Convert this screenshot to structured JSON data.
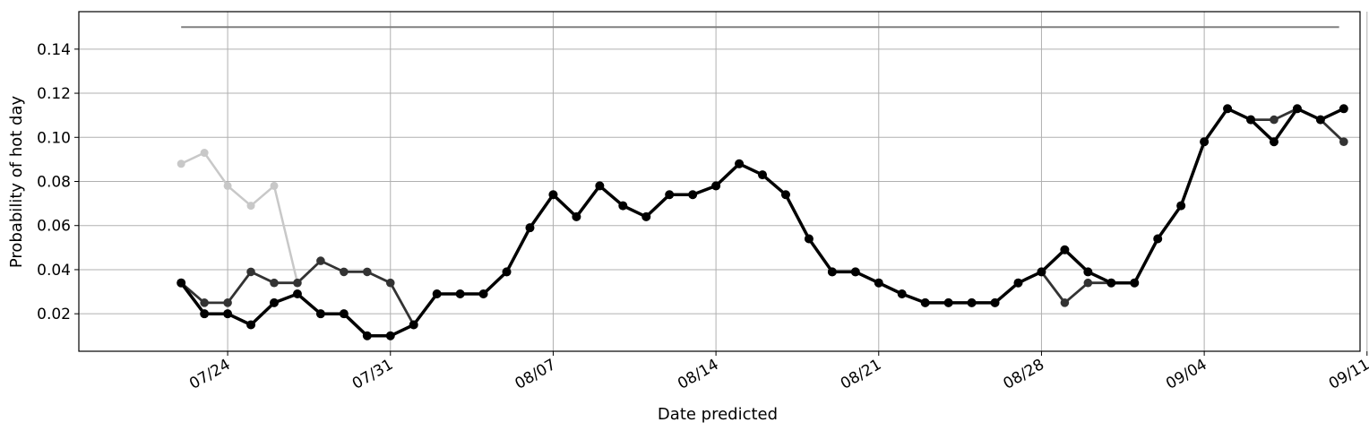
{
  "chart_data": {
    "type": "line",
    "title": "",
    "xlabel": "Date predicted",
    "ylabel": "Probability of hot day",
    "x_tick_labels": [
      "07/24",
      "07/31",
      "08/07",
      "08/14",
      "08/21",
      "08/28",
      "09/04",
      "09/11"
    ],
    "y_tick_labels": [
      "0.02",
      "0.04",
      "0.06",
      "0.08",
      "0.10",
      "0.12",
      "0.14"
    ],
    "y_ticks": [
      0.02,
      0.04,
      0.06,
      0.08,
      0.1,
      0.12,
      0.14
    ],
    "ylim": [
      0.003,
      0.157
    ],
    "xlim_day": [
      -4.4,
      50.7
    ],
    "x_start_label": "07/22",
    "grid": true,
    "reference_line": {
      "value": 0.15,
      "x_start_day": 0,
      "x_end_day": 49.8,
      "color": "#808080"
    },
    "series": [
      {
        "name": "light-gray",
        "color": "#c8c8c8",
        "x_day": [
          0,
          1,
          2,
          3,
          4,
          5
        ],
        "values": [
          0.088,
          0.093,
          0.078,
          0.069,
          0.078,
          0.034
        ]
      },
      {
        "name": "dark-gray",
        "color": "#333333",
        "x_day": [
          0,
          1,
          2,
          3,
          4,
          5,
          6,
          7,
          8,
          9,
          10,
          11,
          12,
          13,
          14,
          15,
          16,
          17,
          18,
          19,
          20,
          21,
          22,
          23,
          24,
          25,
          26,
          27,
          28,
          29,
          30,
          31,
          32,
          33,
          34,
          35,
          36,
          37,
          38,
          39,
          40,
          41,
          42,
          43,
          44,
          45,
          46,
          47,
          48,
          49,
          50
        ],
        "values": [
          0.034,
          0.025,
          0.025,
          0.039,
          0.034,
          0.034,
          0.044,
          0.039,
          0.039,
          0.034,
          0.015,
          0.029,
          0.029,
          0.029,
          0.039,
          0.059,
          0.074,
          0.064,
          0.078,
          0.069,
          0.064,
          0.074,
          0.074,
          0.078,
          0.088,
          0.083,
          0.074,
          0.054,
          0.039,
          0.039,
          0.034,
          0.029,
          0.025,
          0.025,
          0.025,
          0.025,
          0.034,
          0.039,
          0.025,
          0.034,
          0.034,
          0.034,
          0.054,
          0.069,
          0.098,
          0.113,
          0.108,
          0.108,
          0.113,
          0.108,
          0.098
        ]
      },
      {
        "name": "black",
        "color": "#000000",
        "x_day": [
          0,
          1,
          2,
          3,
          4,
          5,
          6,
          7,
          8,
          9,
          10,
          11,
          12,
          13,
          14,
          15,
          16,
          17,
          18,
          19,
          20,
          21,
          22,
          23,
          24,
          25,
          26,
          27,
          28,
          29,
          30,
          31,
          32,
          33,
          34,
          35,
          36,
          37,
          38,
          39,
          40,
          41,
          42,
          43,
          44,
          45,
          46,
          47,
          48,
          49,
          50
        ],
        "values": [
          0.034,
          0.02,
          0.02,
          0.015,
          0.025,
          0.029,
          0.02,
          0.02,
          0.01,
          0.01,
          0.015,
          0.029,
          0.029,
          0.029,
          0.039,
          0.059,
          0.074,
          0.064,
          0.078,
          0.069,
          0.064,
          0.074,
          0.074,
          0.078,
          0.088,
          0.083,
          0.074,
          0.054,
          0.039,
          0.039,
          0.034,
          0.029,
          0.025,
          0.025,
          0.025,
          0.025,
          0.034,
          0.039,
          0.049,
          0.039,
          0.034,
          0.034,
          0.054,
          0.069,
          0.098,
          0.113,
          0.108,
          0.098,
          0.113,
          0.108,
          0.113
        ]
      }
    ]
  }
}
